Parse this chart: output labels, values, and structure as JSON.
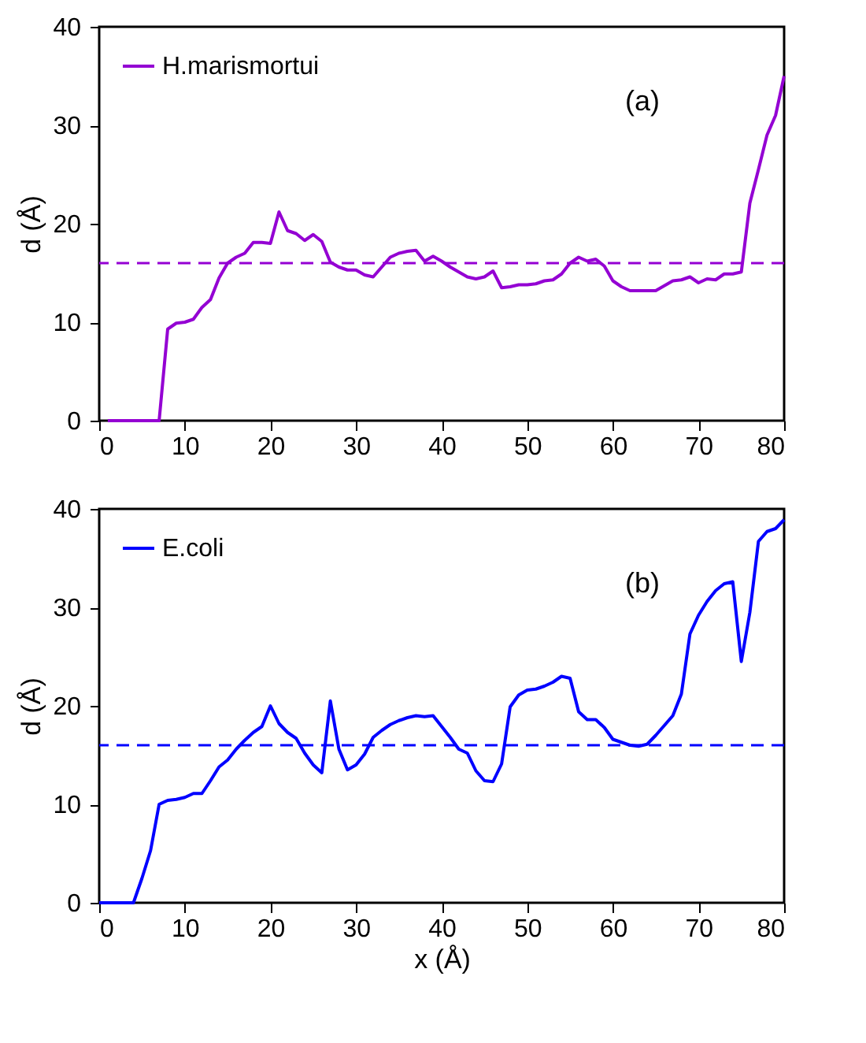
{
  "chart_data": [
    {
      "type": "line",
      "ylabel": "d (Å)",
      "annotations": [
        "(a)"
      ],
      "legend": "top left",
      "grid": false,
      "xlim": [
        0,
        80
      ],
      "xticks": [
        0,
        10,
        20,
        30,
        40,
        50,
        60,
        70,
        80
      ],
      "ylim": [
        0,
        40
      ],
      "yticks": [
        0,
        10,
        20,
        30,
        40
      ],
      "x": [
        1,
        2,
        3,
        4,
        5,
        6,
        7,
        8,
        9,
        10,
        11,
        12,
        13,
        14,
        15,
        16,
        17,
        18,
        19,
        20,
        21,
        22,
        23,
        24,
        25,
        26,
        27,
        28,
        29,
        30,
        31,
        32,
        33,
        34,
        35,
        36,
        37,
        38,
        39,
        40,
        41,
        42,
        43,
        44,
        45,
        46,
        47,
        48,
        49,
        50,
        51,
        52,
        53,
        54,
        55,
        56,
        57,
        58,
        59,
        60,
        61,
        62,
        63,
        64,
        65,
        66,
        67,
        68,
        69,
        70,
        71,
        72,
        73,
        74,
        75,
        76,
        77,
        78,
        79,
        80
      ],
      "series": [
        {
          "name": "H.marismortui",
          "color": "#9400d3",
          "values": [
            0,
            0,
            0,
            0,
            0,
            0,
            0,
            9.3,
            9.9,
            10,
            10.3,
            11.5,
            12.3,
            14.5,
            16,
            16.6,
            17,
            18.1,
            18.1,
            18,
            21.2,
            19.3,
            19,
            18.3,
            18.9,
            18.2,
            16.1,
            15.6,
            15.3,
            15.3,
            14.8,
            14.6,
            15.6,
            16.6,
            17,
            17.2,
            17.3,
            16.2,
            16.7,
            16.2,
            15.6,
            15.1,
            14.6,
            14.4,
            14.6,
            15.2,
            13.5,
            13.6,
            13.8,
            13.8,
            13.9,
            14.2,
            14.3,
            14.9,
            16,
            16.6,
            16.2,
            16.4,
            15.7,
            14.2,
            13.6,
            13.2,
            13.2,
            13.2,
            13.2,
            13.7,
            14.2,
            14.3,
            14.6,
            14,
            14.4,
            14.3,
            14.9,
            14.9,
            15.1,
            22.1,
            25.5,
            29,
            31,
            35
          ]
        }
      ],
      "ref_lines": [
        {
          "axis": "y",
          "value": 16,
          "color": "#9400d3",
          "line_style": "dashed"
        }
      ]
    },
    {
      "type": "line",
      "xlabel": "x (Å)",
      "ylabel": "d (Å)",
      "annotations": [
        "(b)"
      ],
      "legend": "top left",
      "grid": false,
      "xlim": [
        0,
        80
      ],
      "xticks": [
        0,
        10,
        20,
        30,
        40,
        50,
        60,
        70,
        80
      ],
      "ylim": [
        0,
        40
      ],
      "yticks": [
        0,
        10,
        20,
        30,
        40
      ],
      "x": [
        0,
        1,
        2,
        3,
        4,
        5,
        6,
        7,
        8,
        9,
        10,
        11,
        12,
        13,
        14,
        15,
        16,
        17,
        18,
        19,
        20,
        21,
        22,
        23,
        24,
        25,
        26,
        27,
        28,
        29,
        30,
        31,
        32,
        33,
        34,
        35,
        36,
        37,
        38,
        39,
        40,
        41,
        42,
        43,
        44,
        45,
        46,
        47,
        48,
        49,
        50,
        51,
        52,
        53,
        54,
        55,
        56,
        57,
        58,
        59,
        60,
        61,
        62,
        63,
        64,
        65,
        66,
        67,
        68,
        69,
        70,
        71,
        72,
        73,
        74,
        75,
        76,
        77,
        78,
        79,
        80
      ],
      "series": [
        {
          "name": "E.coli",
          "color": "#0000ff",
          "values": [
            0,
            0,
            0,
            0,
            0,
            2.5,
            5.3,
            10,
            10.4,
            10.5,
            10.7,
            11.1,
            11.1,
            12.4,
            13.8,
            14.5,
            15.6,
            16.5,
            17.3,
            17.9,
            20,
            18.2,
            17.3,
            16.7,
            15.2,
            14,
            13.2,
            20.5,
            15.6,
            13.5,
            14,
            15.1,
            16.8,
            17.5,
            18.1,
            18.5,
            18.8,
            19,
            18.9,
            19,
            17.9,
            16.8,
            15.6,
            15.2,
            13.4,
            12.4,
            12.3,
            14.1,
            19.9,
            21.1,
            21.6,
            21.7,
            22,
            22.4,
            23,
            22.8,
            19.4,
            18.6,
            18.6,
            17.8,
            16.6,
            16.3,
            16,
            15.9,
            16.1,
            17,
            18,
            19,
            21.2,
            27.3,
            29.2,
            30.6,
            31.7,
            32.4,
            32.6,
            24.5,
            29.5,
            36.7,
            37.7,
            38,
            38.9
          ]
        }
      ],
      "ref_lines": [
        {
          "axis": "y",
          "value": 16,
          "color": "#0000ff",
          "line_style": "dashed"
        }
      ]
    }
  ]
}
